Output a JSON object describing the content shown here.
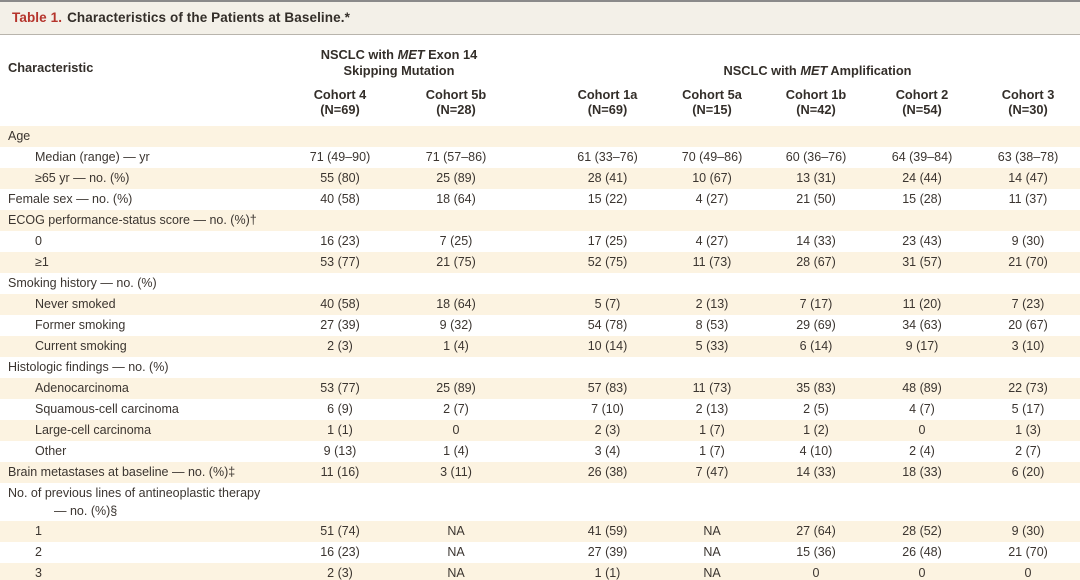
{
  "colors": {
    "title_accent": "#b5342c",
    "row_stripe": "#fcf3e1",
    "text": "#3b3530"
  },
  "title": {
    "label": "Table 1.",
    "text": "Characteristics of the Patients at Baseline.*"
  },
  "header": {
    "characteristic": "Characteristic",
    "groups": [
      {
        "pre": "NSCLC with ",
        "italic": "MET",
        "post": " Exon 14",
        "line2": "Skipping Mutation"
      },
      {
        "pre": "NSCLC with ",
        "italic": "MET",
        "post": " Amplification",
        "line2": ""
      }
    ],
    "cohorts": [
      {
        "name": "Cohort 4",
        "n": "(N=69)"
      },
      {
        "name": "Cohort 5b",
        "n": "(N=28)"
      },
      {
        "name": "Cohort 1a",
        "n": "(N=69)"
      },
      {
        "name": "Cohort 5a",
        "n": "(N=15)"
      },
      {
        "name": "Cohort 1b",
        "n": "(N=42)"
      },
      {
        "name": "Cohort 2",
        "n": "(N=54)"
      },
      {
        "name": "Cohort 3",
        "n": "(N=30)"
      }
    ]
  },
  "rows": [
    {
      "label": "Age",
      "indent": 0,
      "values": [
        "",
        "",
        "",
        "",
        "",
        "",
        ""
      ]
    },
    {
      "label": "Median (range) — yr",
      "indent": 1,
      "values": [
        "71 (49–90)",
        "71 (57–86)",
        "61 (33–76)",
        "70 (49–86)",
        "60 (36–76)",
        "64 (39–84)",
        "63 (38–78)"
      ]
    },
    {
      "label": "≥65 yr — no. (%)",
      "indent": 1,
      "values": [
        "55 (80)",
        "25 (89)",
        "28 (41)",
        "10 (67)",
        "13 (31)",
        "24 (44)",
        "14 (47)"
      ]
    },
    {
      "label": "Female sex — no. (%)",
      "indent": 0,
      "values": [
        "40 (58)",
        "18 (64)",
        "15 (22)",
        "4 (27)",
        "21 (50)",
        "15 (28)",
        "11 (37)"
      ]
    },
    {
      "label": "ECOG performance-status score — no. (%)†",
      "indent": 0,
      "values": [
        "",
        "",
        "",
        "",
        "",
        "",
        ""
      ]
    },
    {
      "label": "0",
      "indent": 1,
      "values": [
        "16 (23)",
        "7 (25)",
        "17 (25)",
        "4 (27)",
        "14 (33)",
        "23 (43)",
        "9 (30)"
      ]
    },
    {
      "label": "≥1",
      "indent": 1,
      "values": [
        "53 (77)",
        "21 (75)",
        "52 (75)",
        "11 (73)",
        "28 (67)",
        "31 (57)",
        "21 (70)"
      ]
    },
    {
      "label": "Smoking history — no. (%)",
      "indent": 0,
      "values": [
        "",
        "",
        "",
        "",
        "",
        "",
        ""
      ]
    },
    {
      "label": "Never smoked",
      "indent": 1,
      "values": [
        "40 (58)",
        "18 (64)",
        "5 (7)",
        "2 (13)",
        "7 (17)",
        "11 (20)",
        "7 (23)"
      ]
    },
    {
      "label": "Former smoking",
      "indent": 1,
      "values": [
        "27 (39)",
        "9 (32)",
        "54 (78)",
        "8 (53)",
        "29 (69)",
        "34 (63)",
        "20 (67)"
      ]
    },
    {
      "label": "Current smoking",
      "indent": 1,
      "values": [
        "2 (3)",
        "1 (4)",
        "10 (14)",
        "5 (33)",
        "6 (14)",
        "9 (17)",
        "3 (10)"
      ]
    },
    {
      "label": "Histologic findings — no. (%)",
      "indent": 0,
      "values": [
        "",
        "",
        "",
        "",
        "",
        "",
        ""
      ]
    },
    {
      "label": "Adenocarcinoma",
      "indent": 1,
      "values": [
        "53 (77)",
        "25 (89)",
        "57 (83)",
        "11 (73)",
        "35 (83)",
        "48 (89)",
        "22 (73)"
      ]
    },
    {
      "label": "Squamous-cell carcinoma",
      "indent": 1,
      "values": [
        "6 (9)",
        "2 (7)",
        "7 (10)",
        "2 (13)",
        "2 (5)",
        "4 (7)",
        "5 (17)"
      ]
    },
    {
      "label": "Large-cell carcinoma",
      "indent": 1,
      "values": [
        "1 (1)",
        "0",
        "2 (3)",
        "1 (7)",
        "1 (2)",
        "0",
        "1 (3)"
      ]
    },
    {
      "label": "Other",
      "indent": 1,
      "values": [
        "9 (13)",
        "1 (4)",
        "3 (4)",
        "1 (7)",
        "4 (10)",
        "2 (4)",
        "2 (7)"
      ]
    },
    {
      "label": "Brain metastases at baseline — no. (%)‡",
      "indent": 0,
      "values": [
        "11 (16)",
        "3 (11)",
        "26 (38)",
        "7 (47)",
        "14 (33)",
        "18 (33)",
        "6 (20)"
      ]
    },
    {
      "label": "No. of previous lines of antineoplastic therapy",
      "label2": "— no. (%)§",
      "indent": 0,
      "values": [
        "",
        "",
        "",
        "",
        "",
        "",
        ""
      ]
    },
    {
      "label": "1",
      "indent": 1,
      "values": [
        "51 (74)",
        "NA",
        "41 (59)",
        "NA",
        "27 (64)",
        "28 (52)",
        "9 (30)"
      ]
    },
    {
      "label": "2",
      "indent": 1,
      "values": [
        "16 (23)",
        "NA",
        "27 (39)",
        "NA",
        "15 (36)",
        "26 (48)",
        "21 (70)"
      ]
    },
    {
      "label": "3",
      "indent": 1,
      "values": [
        "2 (3)",
        "NA",
        "1 (1)",
        "NA",
        "0",
        "0",
        "0"
      ]
    }
  ]
}
